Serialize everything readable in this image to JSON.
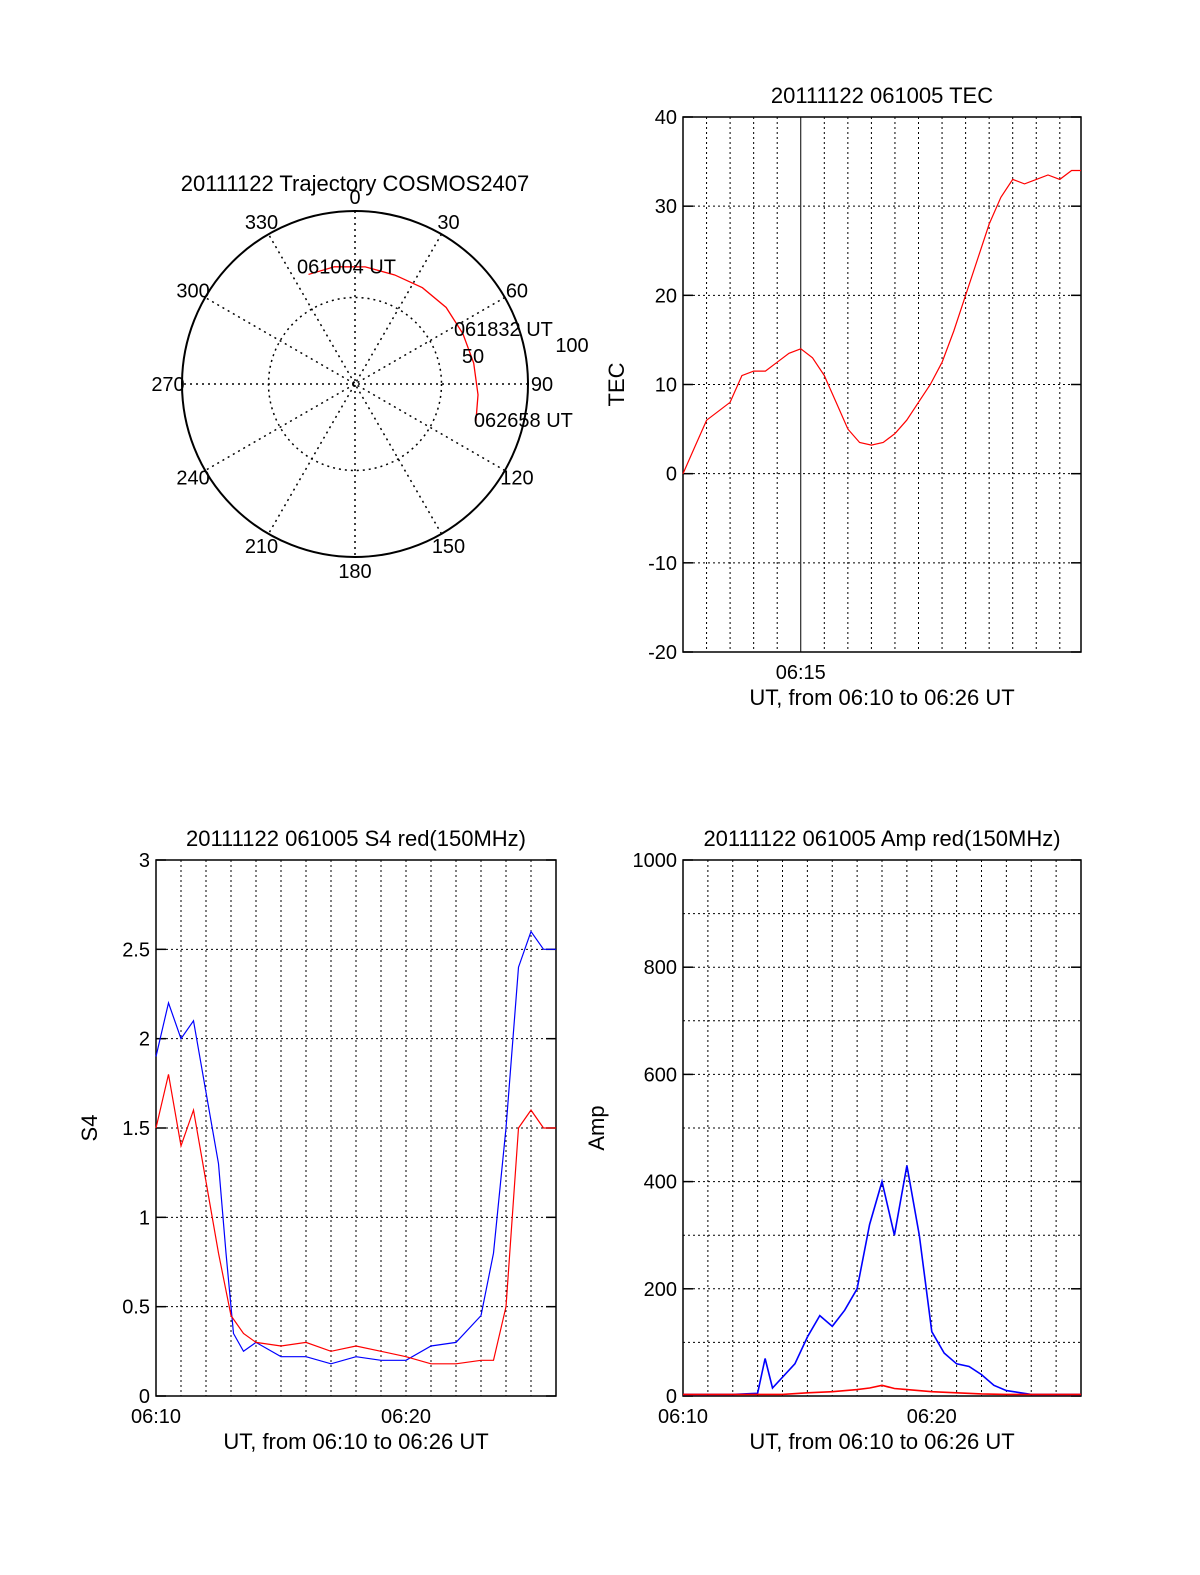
{
  "colors": {
    "red": "#ff0000",
    "blue": "#0000ff",
    "grid": "#000000",
    "axis": "#000000"
  },
  "chart_data": [
    {
      "type": "polar",
      "title": "20111122 Trajectory COSMOS2407",
      "azimuth_ticks": [
        "0",
        "30",
        "60",
        "90",
        "120",
        "150",
        "180",
        "210",
        "240",
        "270",
        "300",
        "330"
      ],
      "radius_labels": [
        "100",
        "50"
      ],
      "grid": true,
      "points": [
        {
          "label": "061004 UT",
          "az": 337,
          "r": 80
        },
        {
          "label": "061832 UT",
          "az": 58,
          "r": 80
        },
        {
          "label": "062658 UT",
          "az": 107,
          "r": 85
        }
      ],
      "track": [
        [
          337,
          80
        ],
        [
          350,
          80
        ],
        [
          5,
          79
        ],
        [
          20,
          78
        ],
        [
          35,
          79
        ],
        [
          50,
          80
        ],
        [
          65,
          80
        ],
        [
          80,
          81
        ],
        [
          95,
          83
        ],
        [
          107,
          85
        ]
      ],
      "track_color": "#ff0000"
    },
    {
      "type": "line",
      "title": "20111122 061005 TEC",
      "ylabel": "TEC",
      "xlabel": "UT, from 06:10 to 06:26 UT",
      "xlim": [
        0,
        16.9
      ],
      "ylim": [
        -20,
        40
      ],
      "yticks": [
        -20,
        -10,
        0,
        10,
        20,
        30,
        40
      ],
      "ytick_labels": [
        "-20",
        "-10",
        "0",
        "10",
        "20",
        "30",
        "40"
      ],
      "xticks": [
        {
          "min": 5,
          "label": "06:15"
        }
      ],
      "grid": true,
      "series": [
        {
          "color": "#ff0000",
          "points": [
            [
              0,
              0
            ],
            [
              0.5,
              3
            ],
            [
              1,
              6
            ],
            [
              1.5,
              7
            ],
            [
              2,
              8
            ],
            [
              2.5,
              11
            ],
            [
              3,
              11.5
            ],
            [
              3.5,
              11.5
            ],
            [
              4,
              12.5
            ],
            [
              4.5,
              13.5
            ],
            [
              5,
              14
            ],
            [
              5.5,
              13
            ],
            [
              6,
              11
            ],
            [
              6.5,
              8
            ],
            [
              7,
              5
            ],
            [
              7.5,
              3.5
            ],
            [
              8,
              3.2
            ],
            [
              8.5,
              3.5
            ],
            [
              9,
              4.5
            ],
            [
              9.5,
              6
            ],
            [
              10,
              8
            ],
            [
              10.5,
              10
            ],
            [
              11,
              12.5
            ],
            [
              11.5,
              16
            ],
            [
              12,
              20
            ],
            [
              12.5,
              24
            ],
            [
              13,
              28
            ],
            [
              13.5,
              31
            ],
            [
              14,
              33
            ],
            [
              14.5,
              32.5
            ],
            [
              15,
              33
            ],
            [
              15.5,
              33.5
            ],
            [
              16,
              33
            ],
            [
              16.5,
              34
            ],
            [
              16.9,
              34
            ]
          ]
        }
      ]
    },
    {
      "type": "line",
      "title": "20111122 061005 S4 red(150MHz)",
      "ylabel": "S4",
      "xlabel": "UT, from 06:10 to 06:26 UT",
      "xlim": [
        0,
        16
      ],
      "ylim": [
        0,
        3
      ],
      "yticks": [
        0,
        0.5,
        1,
        1.5,
        2,
        2.5,
        3
      ],
      "ytick_labels": [
        "0",
        "0.5",
        "1",
        "1.5",
        "2",
        "2.5",
        "3"
      ],
      "xticks": [
        {
          "min": 0,
          "label": "06:10"
        },
        {
          "min": 10,
          "label": "06:20"
        }
      ],
      "grid": true,
      "series": [
        {
          "color": "#0000ff",
          "points": [
            [
              0,
              1.9
            ],
            [
              0.5,
              2.2
            ],
            [
              1,
              2.0
            ],
            [
              1.5,
              2.1
            ],
            [
              2,
              1.7
            ],
            [
              2.5,
              1.3
            ],
            [
              2.8,
              0.8
            ],
            [
              3.1,
              0.35
            ],
            [
              3.5,
              0.25
            ],
            [
              4,
              0.3
            ],
            [
              5,
              0.22
            ],
            [
              6,
              0.22
            ],
            [
              7,
              0.18
            ],
            [
              8,
              0.22
            ],
            [
              9,
              0.2
            ],
            [
              10,
              0.2
            ],
            [
              11,
              0.28
            ],
            [
              12,
              0.3
            ],
            [
              13,
              0.45
            ],
            [
              13.5,
              0.8
            ],
            [
              14,
              1.5
            ],
            [
              14.5,
              2.4
            ],
            [
              15,
              2.6
            ],
            [
              15.5,
              2.5
            ],
            [
              16,
              2.5
            ]
          ]
        },
        {
          "color": "#ff0000",
          "points": [
            [
              0,
              1.5
            ],
            [
              0.5,
              1.8
            ],
            [
              1,
              1.4
            ],
            [
              1.5,
              1.6
            ],
            [
              2,
              1.2
            ],
            [
              2.5,
              0.8
            ],
            [
              3,
              0.45
            ],
            [
              3.5,
              0.35
            ],
            [
              4,
              0.3
            ],
            [
              5,
              0.28
            ],
            [
              6,
              0.3
            ],
            [
              7,
              0.25
            ],
            [
              8,
              0.28
            ],
            [
              9,
              0.25
            ],
            [
              10,
              0.22
            ],
            [
              11,
              0.18
            ],
            [
              12,
              0.18
            ],
            [
              13,
              0.2
            ],
            [
              13.5,
              0.2
            ],
            [
              14,
              0.5
            ],
            [
              14.5,
              1.5
            ],
            [
              15,
              1.6
            ],
            [
              15.5,
              1.5
            ],
            [
              16,
              1.5
            ]
          ]
        }
      ]
    },
    {
      "type": "line",
      "title": "20111122 061005 Amp red(150MHz)",
      "ylabel": "Amp",
      "xlabel": "UT, from 06:10 to 06:26 UT",
      "xlim": [
        0,
        16
      ],
      "ylim": [
        0,
        1000
      ],
      "yticks": [
        0,
        200,
        400,
        600,
        800,
        1000
      ],
      "ytick_labels": [
        "0",
        "200",
        "400",
        "600",
        "800",
        "1000"
      ],
      "xticks": [
        {
          "min": 0,
          "label": "06:10"
        },
        {
          "min": 10,
          "label": "06:20"
        }
      ],
      "grid": true,
      "series": [
        {
          "color": "#0000ff",
          "points": [
            [
              0,
              3
            ],
            [
              2,
              3
            ],
            [
              3,
              5
            ],
            [
              3.3,
              70
            ],
            [
              3.6,
              15
            ],
            [
              4.5,
              60
            ],
            [
              5,
              110
            ],
            [
              5.5,
              150
            ],
            [
              6,
              130
            ],
            [
              6.5,
              160
            ],
            [
              7,
              200
            ],
            [
              7.5,
              320
            ],
            [
              8,
              400
            ],
            [
              8.5,
              300
            ],
            [
              9,
              430
            ],
            [
              9.5,
              300
            ],
            [
              10,
              120
            ],
            [
              10.5,
              80
            ],
            [
              11,
              60
            ],
            [
              11.5,
              55
            ],
            [
              12,
              40
            ],
            [
              12.5,
              20
            ],
            [
              13,
              10
            ],
            [
              14,
              3
            ],
            [
              16,
              3
            ]
          ]
        },
        {
          "color": "#ff0000",
          "points": [
            [
              0,
              3
            ],
            [
              4,
              3
            ],
            [
              5,
              6
            ],
            [
              6,
              8
            ],
            [
              7,
              12
            ],
            [
              7.5,
              15
            ],
            [
              8,
              20
            ],
            [
              8.5,
              14
            ],
            [
              9,
              12
            ],
            [
              10,
              8
            ],
            [
              11,
              6
            ],
            [
              12,
              4
            ],
            [
              13,
              3
            ],
            [
              16,
              3
            ]
          ]
        }
      ]
    }
  ]
}
